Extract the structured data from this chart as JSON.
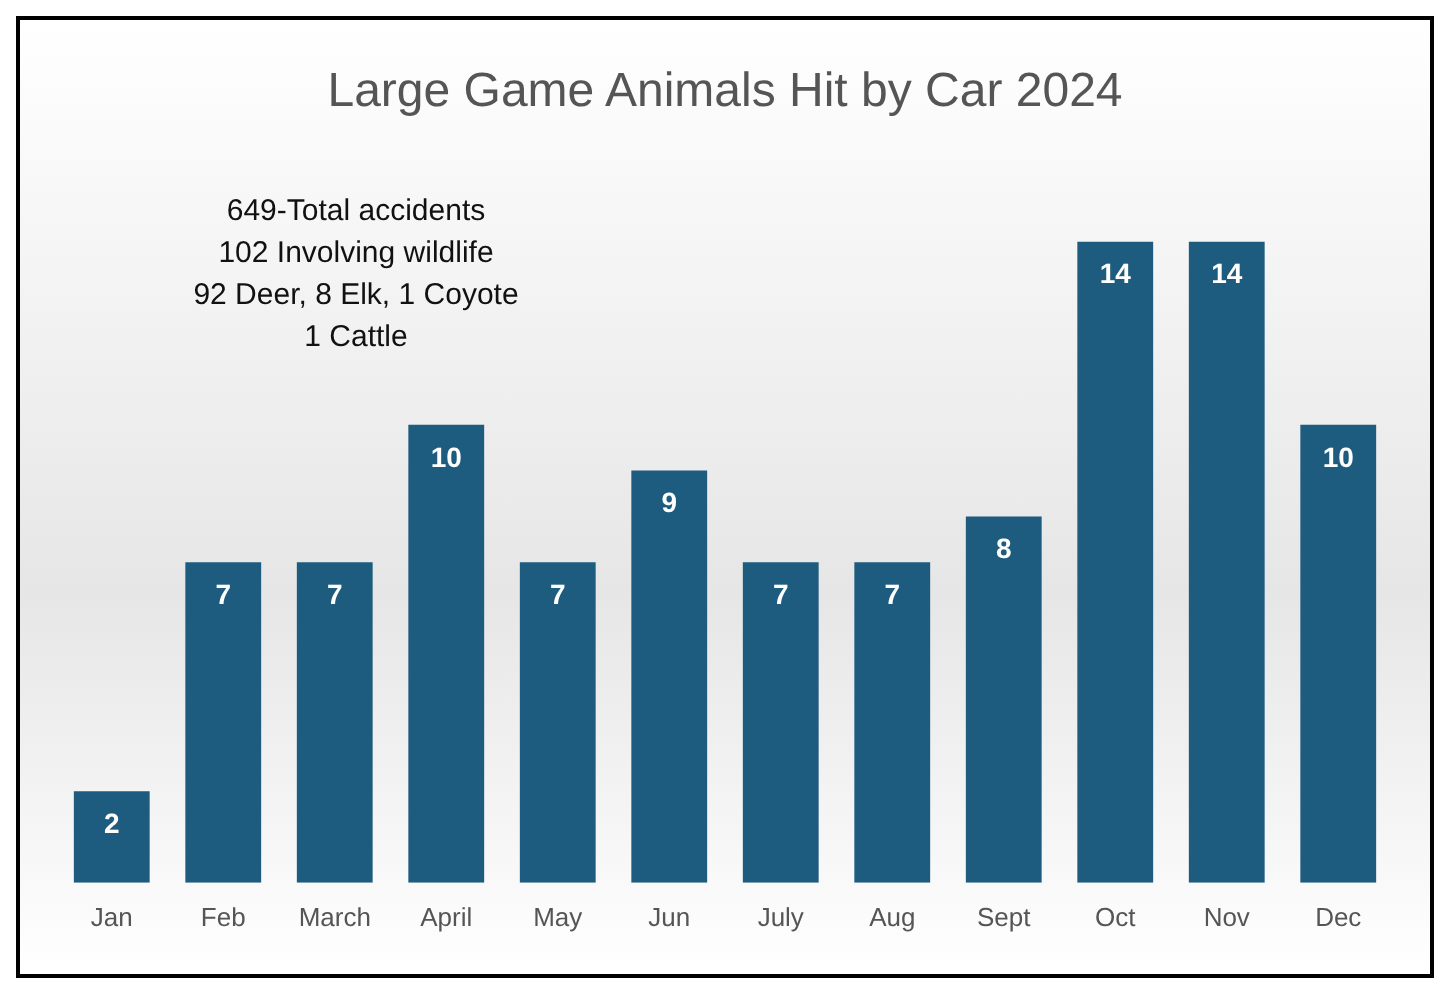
{
  "chart_data": {
    "type": "bar",
    "title": "Large Game Animals Hit by Car 2024",
    "categories": [
      "Jan",
      "Feb",
      "March",
      "April",
      "May",
      "Jun",
      "July",
      "Aug",
      "Sept",
      "Oct",
      "Nov",
      "Dec"
    ],
    "values": [
      2,
      7,
      7,
      10,
      7,
      9,
      7,
      7,
      8,
      14,
      14,
      10
    ],
    "color": "#1d5c7e",
    "data_labels": true,
    "grid": false,
    "legend": false,
    "annotations": [
      "649-Total accidents",
      "102 Involving wildlife",
      "92 Deer, 8 Elk, 1 Coyote",
      "1 Cattle"
    ]
  }
}
